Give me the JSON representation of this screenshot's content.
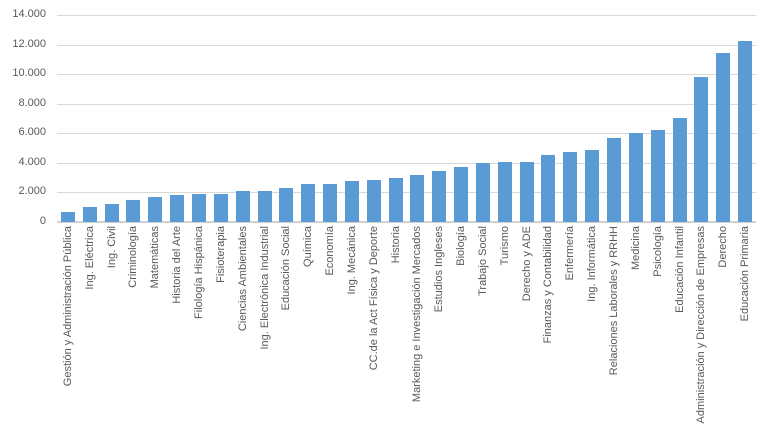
{
  "chart_data": {
    "type": "bar",
    "title": "",
    "xlabel": "",
    "ylabel": "",
    "grid": true,
    "legend": "none",
    "ylim": [
      0,
      14000
    ],
    "ytick_interval": 2000,
    "ytick_labels": [
      "0",
      "2.000",
      "4.000",
      "6.000",
      "8.000",
      "10.000",
      "12.000",
      "14.000"
    ],
    "categories": [
      "Gestión y Administración Pública",
      "Ing. Eléctrica",
      "Ing. Civil",
      "Criminología",
      "Matemáticas",
      "Historia del Arte",
      "Filología Hispánica",
      "Fisioterapia",
      "Ciencias Ambientales",
      "Ing. Electrónica Industrial",
      "Educación Social",
      "Química",
      "Economía",
      "Ing. Mecánica",
      "CC.de la Act Física y Deporte",
      "Historia",
      "Marketing e Investigación Mercados",
      "Estudios Ingleses",
      "Biología",
      "Trabajo Social",
      "Turismo",
      "Derecho y ADE",
      "Finanzas y Contabilidad",
      "Enfermería",
      "Ing. Informática",
      "Relaciones Laborales y RRHH",
      "Medicina",
      "Psicología",
      "Educación Infantil",
      "Administración y Dirección de Empresas",
      "Derecho",
      "Educación Primaria"
    ],
    "values": [
      700,
      1000,
      1200,
      1500,
      1700,
      1800,
      1860,
      1880,
      2080,
      2100,
      2300,
      2550,
      2600,
      2780,
      2850,
      2950,
      3150,
      3450,
      3700,
      3980,
      4030,
      4060,
      4500,
      4750,
      4900,
      5700,
      6000,
      6250,
      7000,
      9800,
      11450,
      12250
    ],
    "colors": {
      "bar": "#5B9BD5",
      "gridline": "#D9D9D9",
      "axis_line": "#D2D2D2",
      "tick_label": "#595959",
      "background": "#FFFFFF"
    }
  }
}
